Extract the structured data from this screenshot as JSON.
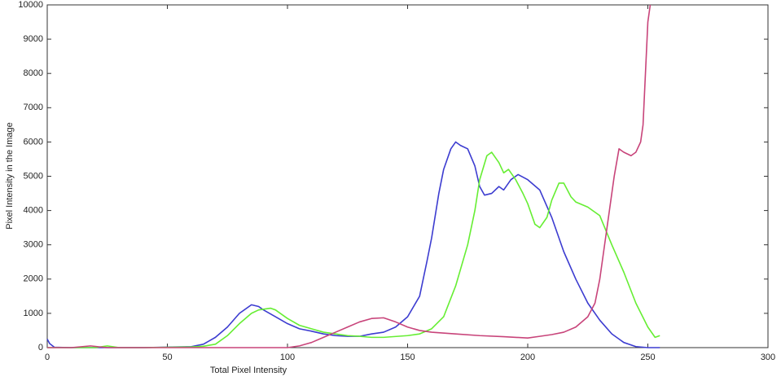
{
  "chart_data": {
    "type": "line",
    "xlabel": "Total Pixel Intensity",
    "ylabel": "Pixel Intensity in the Image",
    "xlim": [
      0,
      300
    ],
    "ylim": [
      0,
      10000
    ],
    "xticks": [
      0,
      50,
      100,
      150,
      200,
      250,
      300
    ],
    "yticks": [
      0,
      1000,
      2000,
      3000,
      4000,
      5000,
      6000,
      7000,
      8000,
      9000,
      10000
    ],
    "grid": false,
    "series": [
      {
        "color": "#3c3cd0",
        "x": [
          0,
          1,
          3,
          10,
          20,
          40,
          60,
          65,
          70,
          75,
          80,
          85,
          88,
          90,
          95,
          100,
          105,
          110,
          115,
          120,
          125,
          130,
          135,
          140,
          145,
          150,
          155,
          158,
          160,
          163,
          165,
          168,
          170,
          172,
          175,
          178,
          180,
          182,
          185,
          188,
          190,
          193,
          196,
          200,
          205,
          210,
          215,
          220,
          225,
          230,
          235,
          240,
          245,
          250,
          255
        ],
        "values": [
          250,
          120,
          10,
          0,
          0,
          0,
          30,
          100,
          300,
          600,
          1000,
          1250,
          1200,
          1100,
          900,
          700,
          550,
          480,
          400,
          350,
          330,
          330,
          400,
          450,
          600,
          900,
          1500,
          2500,
          3200,
          4500,
          5200,
          5800,
          6000,
          5900,
          5800,
          5300,
          4700,
          4450,
          4500,
          4700,
          4600,
          4900,
          5050,
          4900,
          4600,
          3800,
          2800,
          2000,
          1300,
          800,
          400,
          150,
          30,
          0,
          0
        ]
      },
      {
        "color": "#66ee33",
        "x": [
          0,
          10,
          20,
          25,
          30,
          40,
          60,
          65,
          70,
          75,
          80,
          85,
          88,
          93,
          95,
          100,
          105,
          110,
          115,
          120,
          125,
          130,
          135,
          140,
          150,
          155,
          160,
          165,
          170,
          175,
          178,
          180,
          183,
          185,
          188,
          190,
          192,
          195,
          198,
          200,
          203,
          205,
          208,
          210,
          213,
          215,
          218,
          220,
          225,
          230,
          235,
          240,
          245,
          250,
          253,
          255
        ],
        "values": [
          0,
          0,
          0,
          50,
          0,
          0,
          20,
          40,
          100,
          350,
          700,
          1000,
          1100,
          1150,
          1100,
          850,
          650,
          550,
          450,
          400,
          350,
          330,
          300,
          300,
          350,
          400,
          550,
          900,
          1800,
          3000,
          4000,
          4900,
          5600,
          5700,
          5400,
          5100,
          5200,
          4900,
          4500,
          4200,
          3600,
          3500,
          3800,
          4300,
          4800,
          4800,
          4400,
          4250,
          4100,
          3850,
          3000,
          2200,
          1300,
          600,
          300,
          350
        ]
      },
      {
        "color": "#c8447a",
        "x": [
          0,
          10,
          18,
          25,
          40,
          100,
          105,
          110,
          115,
          120,
          125,
          130,
          135,
          140,
          145,
          150,
          155,
          160,
          170,
          180,
          190,
          200,
          205,
          210,
          215,
          220,
          225,
          228,
          230,
          232,
          234,
          236,
          238,
          240,
          243,
          245,
          247,
          248,
          249,
          250,
          251
        ],
        "values": [
          0,
          0,
          50,
          0,
          0,
          0,
          50,
          150,
          300,
          450,
          600,
          750,
          850,
          870,
          750,
          600,
          500,
          450,
          400,
          350,
          320,
          280,
          330,
          380,
          450,
          600,
          900,
          1300,
          2000,
          3000,
          4000,
          5000,
          5800,
          5700,
          5600,
          5700,
          6000,
          6500,
          8000,
          9500,
          10000
        ]
      }
    ]
  }
}
